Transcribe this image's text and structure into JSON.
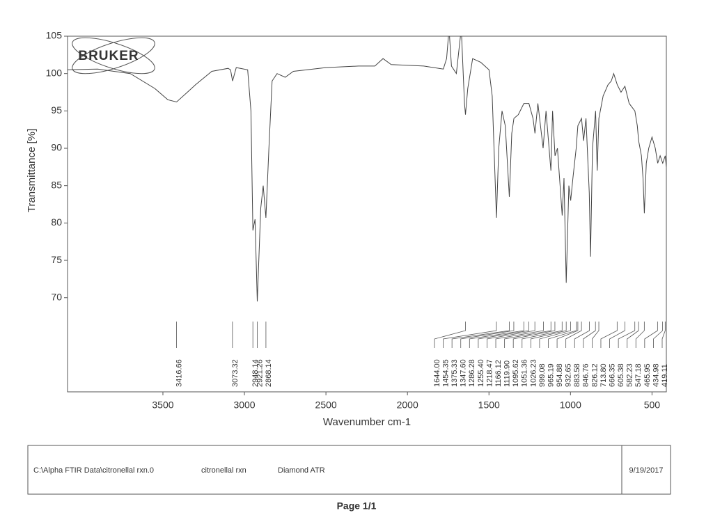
{
  "chart_data": {
    "type": "line",
    "logo": "BRUKER",
    "xlabel": "Wavenumber cm-1",
    "ylabel": "Transmittance [%]",
    "xlim": [
      4085,
      412
    ],
    "xticks": [
      3500,
      3000,
      2500,
      2000,
      1500,
      1000,
      500
    ],
    "ylim": [
      57.4,
      105
    ],
    "yticks": [
      70,
      75,
      80,
      85,
      90,
      95,
      100,
      105
    ],
    "color": "#444444",
    "x": [
      4085,
      3900,
      3700,
      3550,
      3470,
      3416,
      3350,
      3300,
      3200,
      3100,
      3085,
      3073,
      3050,
      2980,
      2960,
      2948,
      2935,
      2921,
      2900,
      2885,
      2868,
      2850,
      2830,
      2800,
      2750,
      2700,
      2500,
      2300,
      2200,
      2150,
      2100,
      1900,
      1780,
      1760,
      1745,
      1730,
      1700,
      1680,
      1670,
      1650,
      1644,
      1630,
      1600,
      1550,
      1500,
      1480,
      1454,
      1440,
      1420,
      1400,
      1375,
      1360,
      1347,
      1320,
      1286,
      1255,
      1230,
      1218,
      1200,
      1168,
      1150,
      1120,
      1110,
      1095,
      1080,
      1051,
      1040,
      1026,
      1010,
      999,
      985,
      965,
      955,
      932,
      920,
      905,
      885,
      877,
      865,
      846,
      836,
      826,
      800,
      770,
      750,
      735,
      713,
      690,
      666,
      640,
      605,
      590,
      582,
      565,
      555,
      547,
      535,
      520,
      500,
      480,
      465,
      450,
      434,
      419,
      412
    ],
    "values": [
      100.5,
      100.6,
      100,
      98,
      96.5,
      96.2,
      97.5,
      98.5,
      100.3,
      100.7,
      100.5,
      99,
      100.8,
      100.5,
      95,
      79,
      80.5,
      69.5,
      82,
      85,
      80.7,
      90,
      99,
      100,
      99.5,
      100.3,
      100.8,
      101,
      101,
      102,
      101.2,
      101,
      100.6,
      102,
      106,
      101,
      100,
      104,
      106,
      96,
      94.5,
      98,
      102,
      101.5,
      100.5,
      97,
      80.7,
      90,
      95,
      93,
      83.5,
      92,
      94,
      94.5,
      96,
      96,
      94,
      92,
      96,
      90,
      95,
      87,
      95,
      89,
      90,
      81,
      86,
      72,
      85,
      83,
      86,
      90,
      93,
      94,
      91,
      94,
      84,
      75.5,
      90,
      95,
      87,
      94,
      97,
      98.5,
      99,
      100,
      98.5,
      97.5,
      98.3,
      96,
      95,
      93,
      91,
      89,
      86,
      81.3,
      88,
      90,
      91.5,
      90,
      88,
      89,
      88,
      89,
      87.5
    ],
    "peaks": [
      3416.66,
      3073.32,
      2948.14,
      2921.26,
      2868.14,
      {
        "value": 1644,
        "label": "1644.00"
      },
      1454.35,
      1375.33,
      {
        "value": 1347.6,
        "label": "1347.60"
      },
      1286.28,
      {
        "value": 1255.4,
        "label": "1255.40"
      },
      1218.47,
      1166.12,
      {
        "value": 1119.9,
        "label": "1119.90"
      },
      1095.62,
      1051.36,
      1026.23,
      999.08,
      965.19,
      954.88,
      932.65,
      883.58,
      846.76,
      826.12,
      {
        "value": 713.8,
        "label": "713.80"
      },
      666.35,
      605.38,
      582.23,
      547.18,
      465.95,
      434.98,
      419.11
    ]
  },
  "footer": {
    "file": "C:\\Alpha FTIR Data\\citronellal rxn.0",
    "sample": "citronellal rxn",
    "method": "Diamond ATR",
    "date": "9/19/2017",
    "page": "Page 1/1"
  }
}
